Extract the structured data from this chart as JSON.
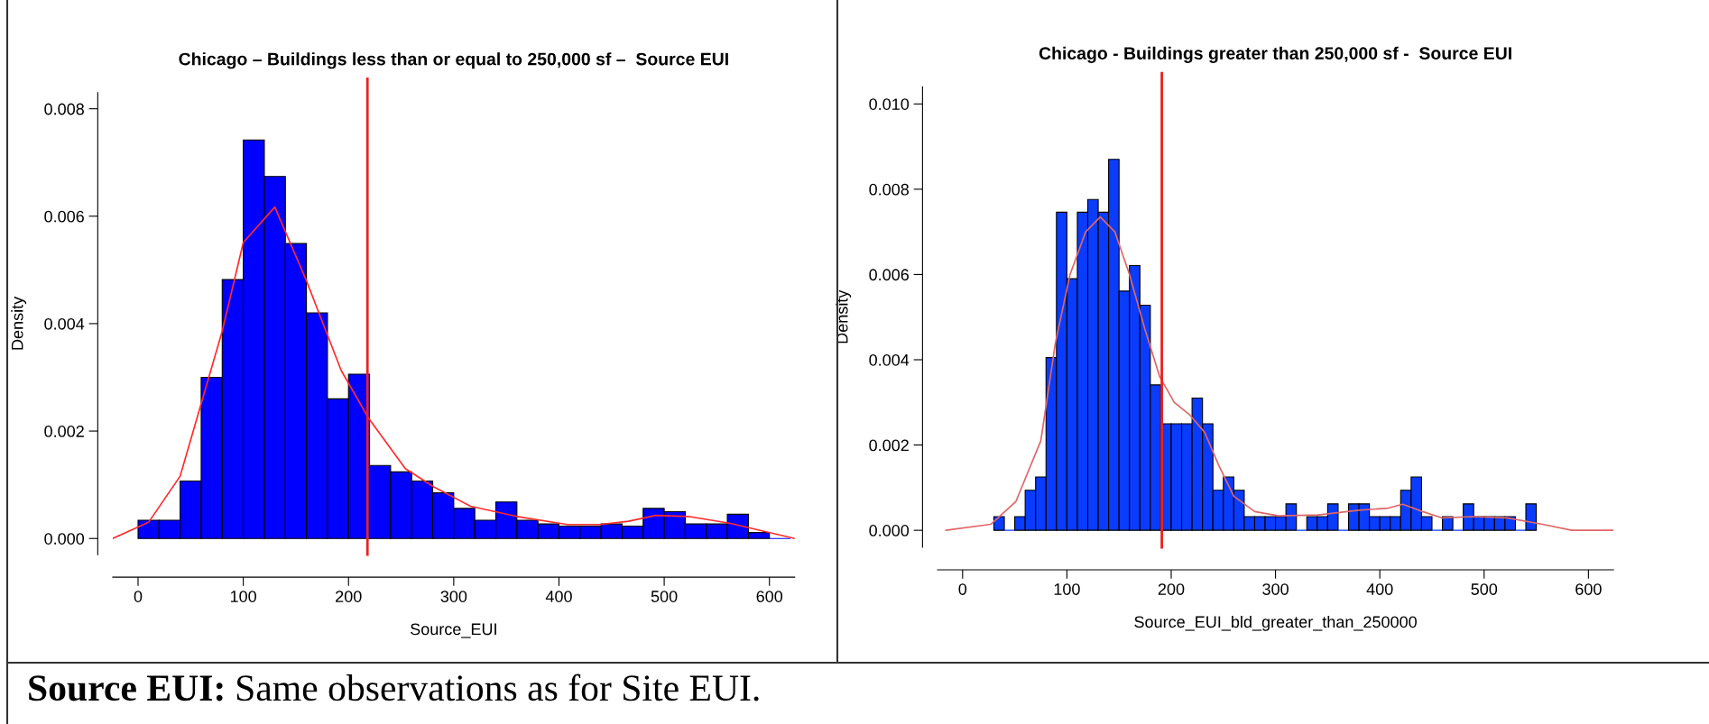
{
  "chart_data": [
    {
      "type": "histogram",
      "title": "Chicago – Buildings less than or equal to 250,000 sf –  Source EUI",
      "xlabel": "Source_EUI",
      "ylabel": "Density",
      "color": "#0000ff",
      "bins": [
        0,
        20,
        40,
        60,
        80,
        100,
        120,
        140,
        160,
        180,
        200,
        220,
        240,
        260,
        280,
        300,
        320,
        340,
        360,
        380,
        400,
        420,
        440,
        460,
        480,
        500,
        520,
        540,
        560,
        580,
        600,
        620
      ],
      "values": [
        0.00034,
        0.00034,
        0.00107,
        0.003,
        0.00482,
        0.00742,
        0.00674,
        0.00549,
        0.0042,
        0.0026,
        0.00306,
        0.00136,
        0.00124,
        0.00107,
        0.00085,
        0.00056,
        0.00034,
        0.00068,
        0.00034,
        0.00027,
        0.00023,
        0.00023,
        0.00027,
        0.00023,
        0.00056,
        0.0005,
        0.00027,
        0.00027,
        0.00045,
        0.00011,
        0
      ],
      "series": [
        {
          "type": "line",
          "color": "#ff2a2a",
          "x": [
            -24,
            10,
            40,
            80,
            100,
            130,
            160,
            193,
            219,
            254,
            281,
            316,
            360,
            408,
            439,
            466,
            492,
            523,
            563,
            624
          ],
          "values": [
            0,
            0.0003,
            0.00116,
            0.00386,
            0.00551,
            0.00617,
            0.0048,
            0.00313,
            0.00224,
            0.0013,
            0.00096,
            0.0006,
            0.00041,
            0.00026,
            0.00026,
            0.00032,
            0.00043,
            0.00041,
            0.00028,
            0
          ]
        }
      ],
      "ref_lines": [
        {
          "axis": "x",
          "value": 218,
          "color": "#e8231f"
        }
      ],
      "xlim": [
        -24,
        624
      ],
      "ylim": [
        -0.0003,
        0.0083
      ],
      "xticks": [
        0,
        100,
        200,
        300,
        400,
        500,
        600
      ],
      "yticks": [
        {
          "value": 0,
          "label": "0.000"
        },
        {
          "value": 0.002,
          "label": "0.002"
        },
        {
          "value": 0.004,
          "label": "0.004"
        },
        {
          "value": 0.006,
          "label": "0.006"
        },
        {
          "value": 0.008,
          "label": "0.008"
        }
      ],
      "grid": false,
      "annotations": [
        "Source EUI:",
        "Same observations as for Site EUI."
      ]
    },
    {
      "type": "histogram",
      "title": "Chicago - Buildings greater than 250,000 sf -  Source EUI",
      "xlabel": "Source_EUI_bld_greater_than_250000",
      "ylabel": "Density",
      "color": "#0a3cff",
      "bins": [
        30,
        40,
        50,
        60,
        70,
        80,
        90,
        100,
        110,
        120,
        130,
        140,
        150,
        160,
        170,
        180,
        190,
        200,
        210,
        220,
        230,
        240,
        250,
        260,
        270,
        280,
        290,
        300,
        310,
        320,
        330,
        340,
        350,
        360,
        370,
        380,
        390,
        400,
        410,
        420,
        430,
        440,
        450,
        460,
        470,
        480,
        490,
        500,
        510,
        520,
        530,
        540,
        550
      ],
      "values": [
        0.00032,
        0,
        0.00032,
        0.00094,
        0.00125,
        0.00405,
        0.00746,
        0.0059,
        0.00746,
        0.00776,
        0.00746,
        0.0087,
        0.00561,
        0.00621,
        0.00528,
        0.00341,
        0.0025,
        0.0025,
        0.0025,
        0.0031,
        0.0025,
        0.00094,
        0.00125,
        0.00094,
        0.00032,
        0.00032,
        0.00032,
        0.00032,
        0.00062,
        0,
        0.00032,
        0.00032,
        0.00062,
        0,
        0.00062,
        0.00062,
        0.00032,
        0.00032,
        0.00032,
        0.00094,
        0.00125,
        0.00032,
        0,
        0.00032,
        0,
        0.00062,
        0.00032,
        0.00032,
        0.00032,
        0.00032,
        0,
        0.00062
      ],
      "series": [
        {
          "type": "line",
          "color": "#e06666",
          "x": [
            -16,
            27,
            51,
            75,
            89,
            103,
            118,
            132,
            146,
            160,
            175,
            189,
            203,
            218,
            232,
            246,
            260,
            280,
            303,
            341,
            380,
            408,
            422,
            441,
            460,
            489,
            522,
            556,
            584,
            624
          ],
          "values": [
            0,
            0.00014,
            0.00067,
            0.0021,
            0.0044,
            0.006,
            0.007,
            0.00735,
            0.007,
            0.006,
            0.0047,
            0.0036,
            0.003,
            0.0027,
            0.0023,
            0.0015,
            0.0008,
            0.00044,
            0.00034,
            0.00036,
            0.00047,
            0.00052,
            0.00061,
            0.00044,
            0.00029,
            0.00032,
            0.00029,
            0.00014,
            0,
            0
          ]
        }
      ],
      "ref_lines": [
        {
          "axis": "x",
          "value": 191,
          "color": "#e8231f"
        }
      ],
      "xlim": [
        -24,
        624
      ],
      "ylim": [
        -0.0004,
        0.0104
      ],
      "xticks": [
        0,
        100,
        200,
        300,
        400,
        500,
        600
      ],
      "yticks": [
        {
          "value": 0,
          "label": "0.000"
        },
        {
          "value": 0.002,
          "label": "0.002"
        },
        {
          "value": 0.004,
          "label": "0.004"
        },
        {
          "value": 0.006,
          "label": "0.006"
        },
        {
          "value": 0.008,
          "label": "0.008"
        },
        {
          "value": 0.01,
          "label": "0.010"
        }
      ],
      "grid": false
    }
  ]
}
